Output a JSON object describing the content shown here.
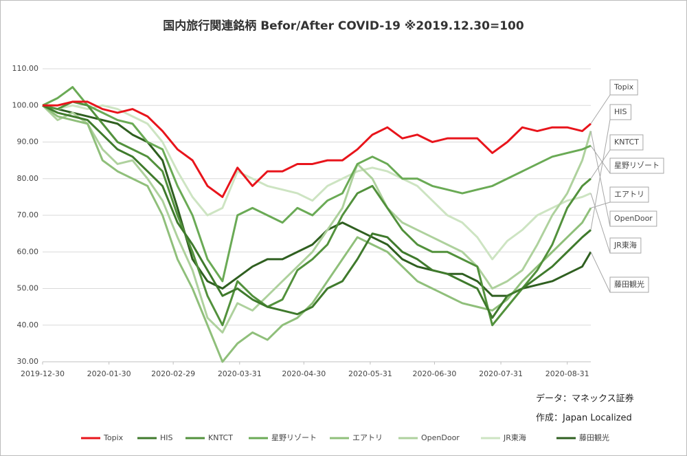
{
  "chart_data": {
    "type": "line",
    "title": "国内旅行関連銘柄 Befor/After COVID-19 ※2019.12.30=100",
    "annotations": [
      "データ：マネックス証券",
      "作成：Japan Localized"
    ],
    "x": [
      "2019-12-30",
      "2020-01-06",
      "2020-01-13",
      "2020-01-20",
      "2020-01-27",
      "2020-02-03",
      "2020-02-10",
      "2020-02-17",
      "2020-02-24",
      "2020-03-02",
      "2020-03-09",
      "2020-03-16",
      "2020-03-23",
      "2020-03-30",
      "2020-04-06",
      "2020-04-13",
      "2020-04-20",
      "2020-04-27",
      "2020-05-04",
      "2020-05-11",
      "2020-05-18",
      "2020-05-25",
      "2020-06-01",
      "2020-06-08",
      "2020-06-15",
      "2020-06-22",
      "2020-06-29",
      "2020-07-06",
      "2020-07-13",
      "2020-07-20",
      "2020-07-27",
      "2020-08-03",
      "2020-08-10",
      "2020-08-17",
      "2020-08-24",
      "2020-08-31",
      "2020-09-07",
      "2020-09-11"
    ],
    "xlim": [
      "2019-12-30",
      "2020-09-11"
    ],
    "xticks": [
      "2019-12-30",
      "2020-01-30",
      "2020-02-29",
      "2020-03-31",
      "2020-04-30",
      "2020-05-31",
      "2020-06-30",
      "2020-07-31",
      "2020-08-31"
    ],
    "ylim": [
      30,
      110
    ],
    "yticks": [
      {
        "value": 30,
        "label": "30.00"
      },
      {
        "value": 40,
        "label": "40.00"
      },
      {
        "value": 50,
        "label": "50.00"
      },
      {
        "value": 60,
        "label": "60.00"
      },
      {
        "value": 70,
        "label": "70.00"
      },
      {
        "value": 80,
        "label": "80.00"
      },
      {
        "value": 90,
        "label": "90.00"
      },
      {
        "value": 100,
        "label": "100.00"
      },
      {
        "value": 110,
        "label": "110.00"
      }
    ],
    "grid": true,
    "legend": "bottom",
    "series": [
      {
        "name": "Topix",
        "color": "#e8141b",
        "values": [
          100,
          100,
          101,
          101,
          99,
          98,
          99,
          97,
          93,
          88,
          85,
          78,
          75,
          83,
          78,
          82,
          82,
          84,
          84,
          85,
          85,
          88,
          92,
          94,
          91,
          92,
          90,
          91,
          91,
          91,
          87,
          90,
          94,
          93,
          94,
          94,
          93,
          95
        ]
      },
      {
        "name": "HIS",
        "color": "#3f7a2c",
        "values": [
          100,
          98,
          97,
          96,
          92,
          88,
          86,
          82,
          78,
          68,
          62,
          55,
          48,
          50,
          47,
          45,
          44,
          43,
          45,
          50,
          52,
          58,
          65,
          64,
          60,
          58,
          55,
          54,
          52,
          50,
          42,
          48,
          50,
          53,
          56,
          60,
          64,
          66
        ]
      },
      {
        "name": "KNTCT",
        "color": "#52913c",
        "values": [
          100,
          99,
          101,
          100,
          95,
          90,
          88,
          86,
          82,
          70,
          60,
          48,
          40,
          52,
          48,
          45,
          47,
          55,
          58,
          62,
          70,
          76,
          78,
          72,
          66,
          62,
          60,
          60,
          58,
          56,
          40,
          45,
          50,
          55,
          62,
          72,
          78,
          80
        ]
      },
      {
        "name": "星野リゾート",
        "color": "#6aaa55",
        "values": [
          100,
          102,
          105,
          100,
          98,
          96,
          95,
          90,
          88,
          78,
          70,
          58,
          52,
          70,
          72,
          70,
          68,
          72,
          70,
          74,
          76,
          84,
          86,
          84,
          80,
          80,
          78,
          77,
          76,
          77,
          78,
          80,
          82,
          84,
          86,
          87,
          88,
          89
        ]
      },
      {
        "name": "エアトリ",
        "color": "#8fbf7a",
        "values": [
          100,
          97,
          96,
          95,
          85,
          82,
          80,
          78,
          70,
          58,
          50,
          40,
          30,
          35,
          38,
          36,
          40,
          42,
          46,
          52,
          58,
          64,
          62,
          60,
          56,
          52,
          50,
          48,
          46,
          45,
          44,
          47,
          52,
          56,
          60,
          64,
          68,
          72
        ]
      },
      {
        "name": "OpenDoor",
        "color": "#aed19d",
        "values": [
          100,
          96,
          98,
          95,
          88,
          84,
          85,
          80,
          74,
          64,
          55,
          42,
          38,
          46,
          44,
          48,
          52,
          56,
          60,
          66,
          72,
          84,
          80,
          72,
          68,
          66,
          64,
          62,
          60,
          56,
          50,
          52,
          55,
          62,
          70,
          76,
          85,
          93
        ]
      },
      {
        "name": "JR東海",
        "color": "#cde4c2",
        "values": [
          100,
          99,
          100,
          99,
          100,
          99,
          97,
          95,
          90,
          82,
          75,
          70,
          72,
          82,
          80,
          78,
          77,
          76,
          74,
          78,
          80,
          82,
          83,
          82,
          80,
          78,
          74,
          70,
          68,
          64,
          58,
          63,
          66,
          70,
          72,
          74,
          75,
          76
        ]
      },
      {
        "name": "藤田観光",
        "color": "#2f5f20",
        "values": [
          100,
          99,
          98,
          97,
          96,
          95,
          92,
          90,
          85,
          72,
          58,
          52,
          50,
          53,
          56,
          58,
          58,
          60,
          62,
          66,
          68,
          66,
          64,
          62,
          58,
          56,
          55,
          54,
          54,
          52,
          48,
          48,
          50,
          51,
          52,
          54,
          56,
          60
        ]
      }
    ]
  }
}
